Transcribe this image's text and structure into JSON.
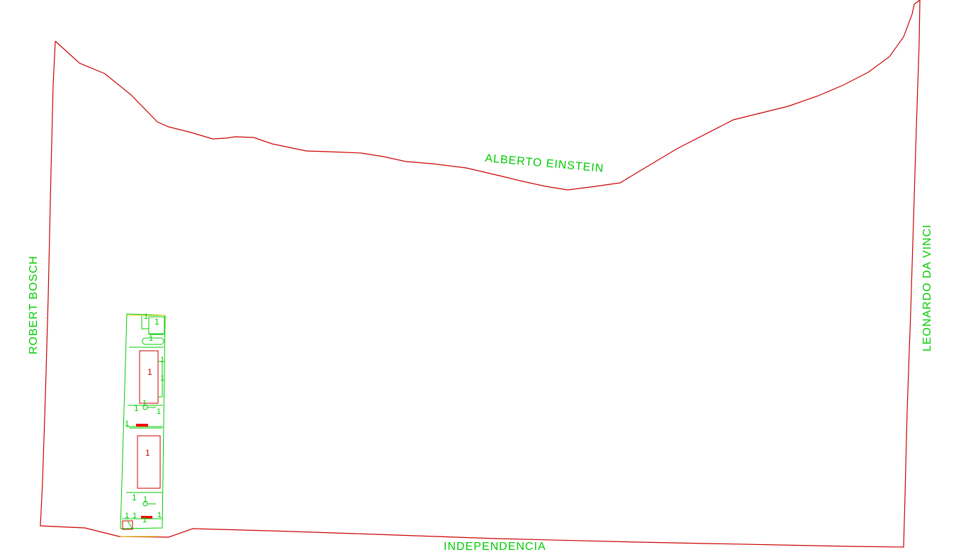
{
  "streets": {
    "top": "ALBERTO EINSTEIN",
    "bottom": "INDEPENDENCIA",
    "left": "ROBERT BOSCH",
    "right": "LEONARDO DA VINCI"
  },
  "building": {
    "label": "1"
  },
  "colors": {
    "boundary": "#cc0000",
    "building": "#00cc00",
    "accent": "#ff0000",
    "background": "#ffffff"
  }
}
